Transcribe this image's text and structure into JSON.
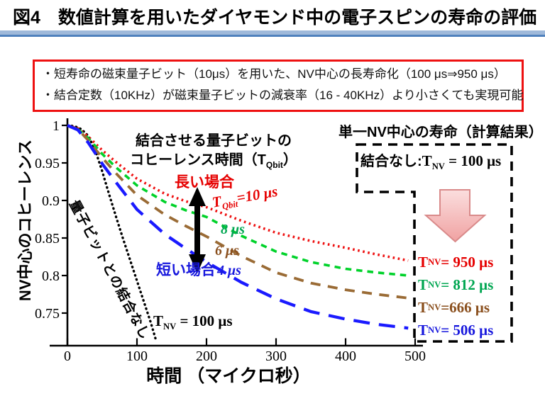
{
  "title": "図4　数値計算を用いたダイヤモンド中の電子スピンの寿命の評価",
  "accent_colors": {
    "title_bar_light": "#9fb9da",
    "title_bar_dark": "#4f81bd",
    "summary_border": "#ee1111"
  },
  "summary_box": {
    "line1": "・短寿命の磁束量子ビット（10μs）を用いた、NV中心の長寿命化（100 μs⇒950 μs）",
    "line2": "・結合定数（10KHz）が磁束量子ビットの減衰率（16 - 40KHz）より小さくても実現可能"
  },
  "annotations": {
    "qubit_coherence_line1": "結合させる量子ビットの",
    "qubit_coherence_line2_pre": "コヒーレンス時間（T",
    "qubit_coherence_line2_sub": "Qbit",
    "qubit_coherence_line2_post": "）",
    "long_case": "長い場合",
    "short_case": "短い場合",
    "tqbit_prefix": "T",
    "tqbit_sub": "Qbit",
    "tqbit_rest": "=10 μs",
    "label_8": "8 μs",
    "label_6": "6 μs",
    "label_4": "4 μs",
    "no_coupling_curve": "量子ビットとの結合なし",
    "tnv_prefix": "T",
    "tnv_sub": "NV",
    "tnv_rest": " = 100 μs"
  },
  "right_panel": {
    "heading": "単一NV中心の寿命（計算結果）",
    "no_coupling_label": "結合なし:",
    "no_coupling_prefix": "T",
    "no_coupling_sub": "NV",
    "no_coupling_rest": " = 100 μs",
    "results": [
      {
        "prefix": "T",
        "sub": "NV",
        "rest": " = 950 μs",
        "color": "#e60000"
      },
      {
        "prefix": "T",
        "sub": "NV",
        "rest": " = 812 μs",
        "color": "#00a651"
      },
      {
        "prefix": "T",
        "sub": "NV",
        "rest": " =666 μs",
        "color": "#8a4f1d"
      },
      {
        "prefix": "T",
        "sub": "NV",
        "rest": " = 506 μs",
        "color": "#1818dd"
      }
    ]
  },
  "chart_data": {
    "type": "line",
    "title": "",
    "xlabel": "時間 （マイクロ秒）",
    "ylabel": "NV中心のコヒーレンス",
    "xlim": [
      0,
      500
    ],
    "ylim": [
      0.705,
      1.005
    ],
    "grid": false,
    "legend_position": "none",
    "xticks": [
      0,
      100,
      200,
      300,
      400,
      500
    ],
    "ytick_values": [
      1,
      0.95,
      0.9,
      0.85,
      0.8,
      0.75
    ],
    "ytick_labels": [
      "1",
      "0.95",
      "0.9",
      "0.85",
      "0.8",
      "0.75"
    ],
    "series": [
      {
        "name": "量子ビットとの結合なし (T_NV = 100 μs)",
        "tqbit_us": null,
        "tnv_result_us": 100,
        "color": "#000000",
        "linestyle": "dot",
        "x": [
          0,
          10,
          20,
          30,
          40,
          50,
          60,
          70,
          80,
          90,
          100,
          110,
          120,
          128
        ],
        "y": [
          1.0,
          0.999,
          0.995,
          0.986,
          0.967,
          0.939,
          0.908,
          0.878,
          0.849,
          0.821,
          0.793,
          0.765,
          0.737,
          0.712
        ]
      },
      {
        "name": "T_Qbit = 10 μs",
        "tqbit_us": 10,
        "tnv_result_us": 950,
        "color": "#ee1111",
        "linestyle": "fine-dot",
        "x": [
          0,
          15,
          30,
          50,
          70,
          100,
          140,
          170,
          200,
          250,
          300,
          350,
          400,
          445,
          490
        ],
        "y": [
          1.0,
          0.996,
          0.985,
          0.967,
          0.951,
          0.929,
          0.909,
          0.899,
          0.891,
          0.873,
          0.857,
          0.846,
          0.837,
          0.828,
          0.82
        ]
      },
      {
        "name": "T_Qbit = 8 μs",
        "tqbit_us": 8,
        "tnv_result_us": 812,
        "color": "#00d22a",
        "linestyle": "short-dash",
        "x": [
          0,
          15,
          30,
          50,
          70,
          100,
          140,
          170,
          200,
          250,
          300,
          350,
          400,
          445,
          490
        ],
        "y": [
          1.0,
          0.995,
          0.983,
          0.962,
          0.944,
          0.92,
          0.898,
          0.887,
          0.878,
          0.853,
          0.832,
          0.818,
          0.809,
          0.804,
          0.8
        ]
      },
      {
        "name": "T_Qbit = 6 μs",
        "tqbit_us": 6,
        "tnv_result_us": 666,
        "color": "#9a6b35",
        "linestyle": "med-dash",
        "x": [
          0,
          15,
          30,
          50,
          70,
          100,
          140,
          170,
          200,
          250,
          300,
          350,
          400,
          445,
          490
        ],
        "y": [
          1.0,
          0.995,
          0.98,
          0.957,
          0.936,
          0.907,
          0.881,
          0.866,
          0.852,
          0.826,
          0.804,
          0.79,
          0.781,
          0.775,
          0.77
        ]
      },
      {
        "name": "T_Qbit = 4 μs",
        "tqbit_us": 4,
        "tnv_result_us": 506,
        "color": "#1a1aff",
        "linestyle": "long-dash",
        "x": [
          0,
          15,
          30,
          50,
          70,
          100,
          140,
          170,
          200,
          250,
          300,
          350,
          400,
          445,
          490
        ],
        "y": [
          1.0,
          0.994,
          0.977,
          0.949,
          0.924,
          0.888,
          0.855,
          0.836,
          0.818,
          0.791,
          0.769,
          0.752,
          0.742,
          0.735,
          0.73
        ]
      }
    ]
  }
}
